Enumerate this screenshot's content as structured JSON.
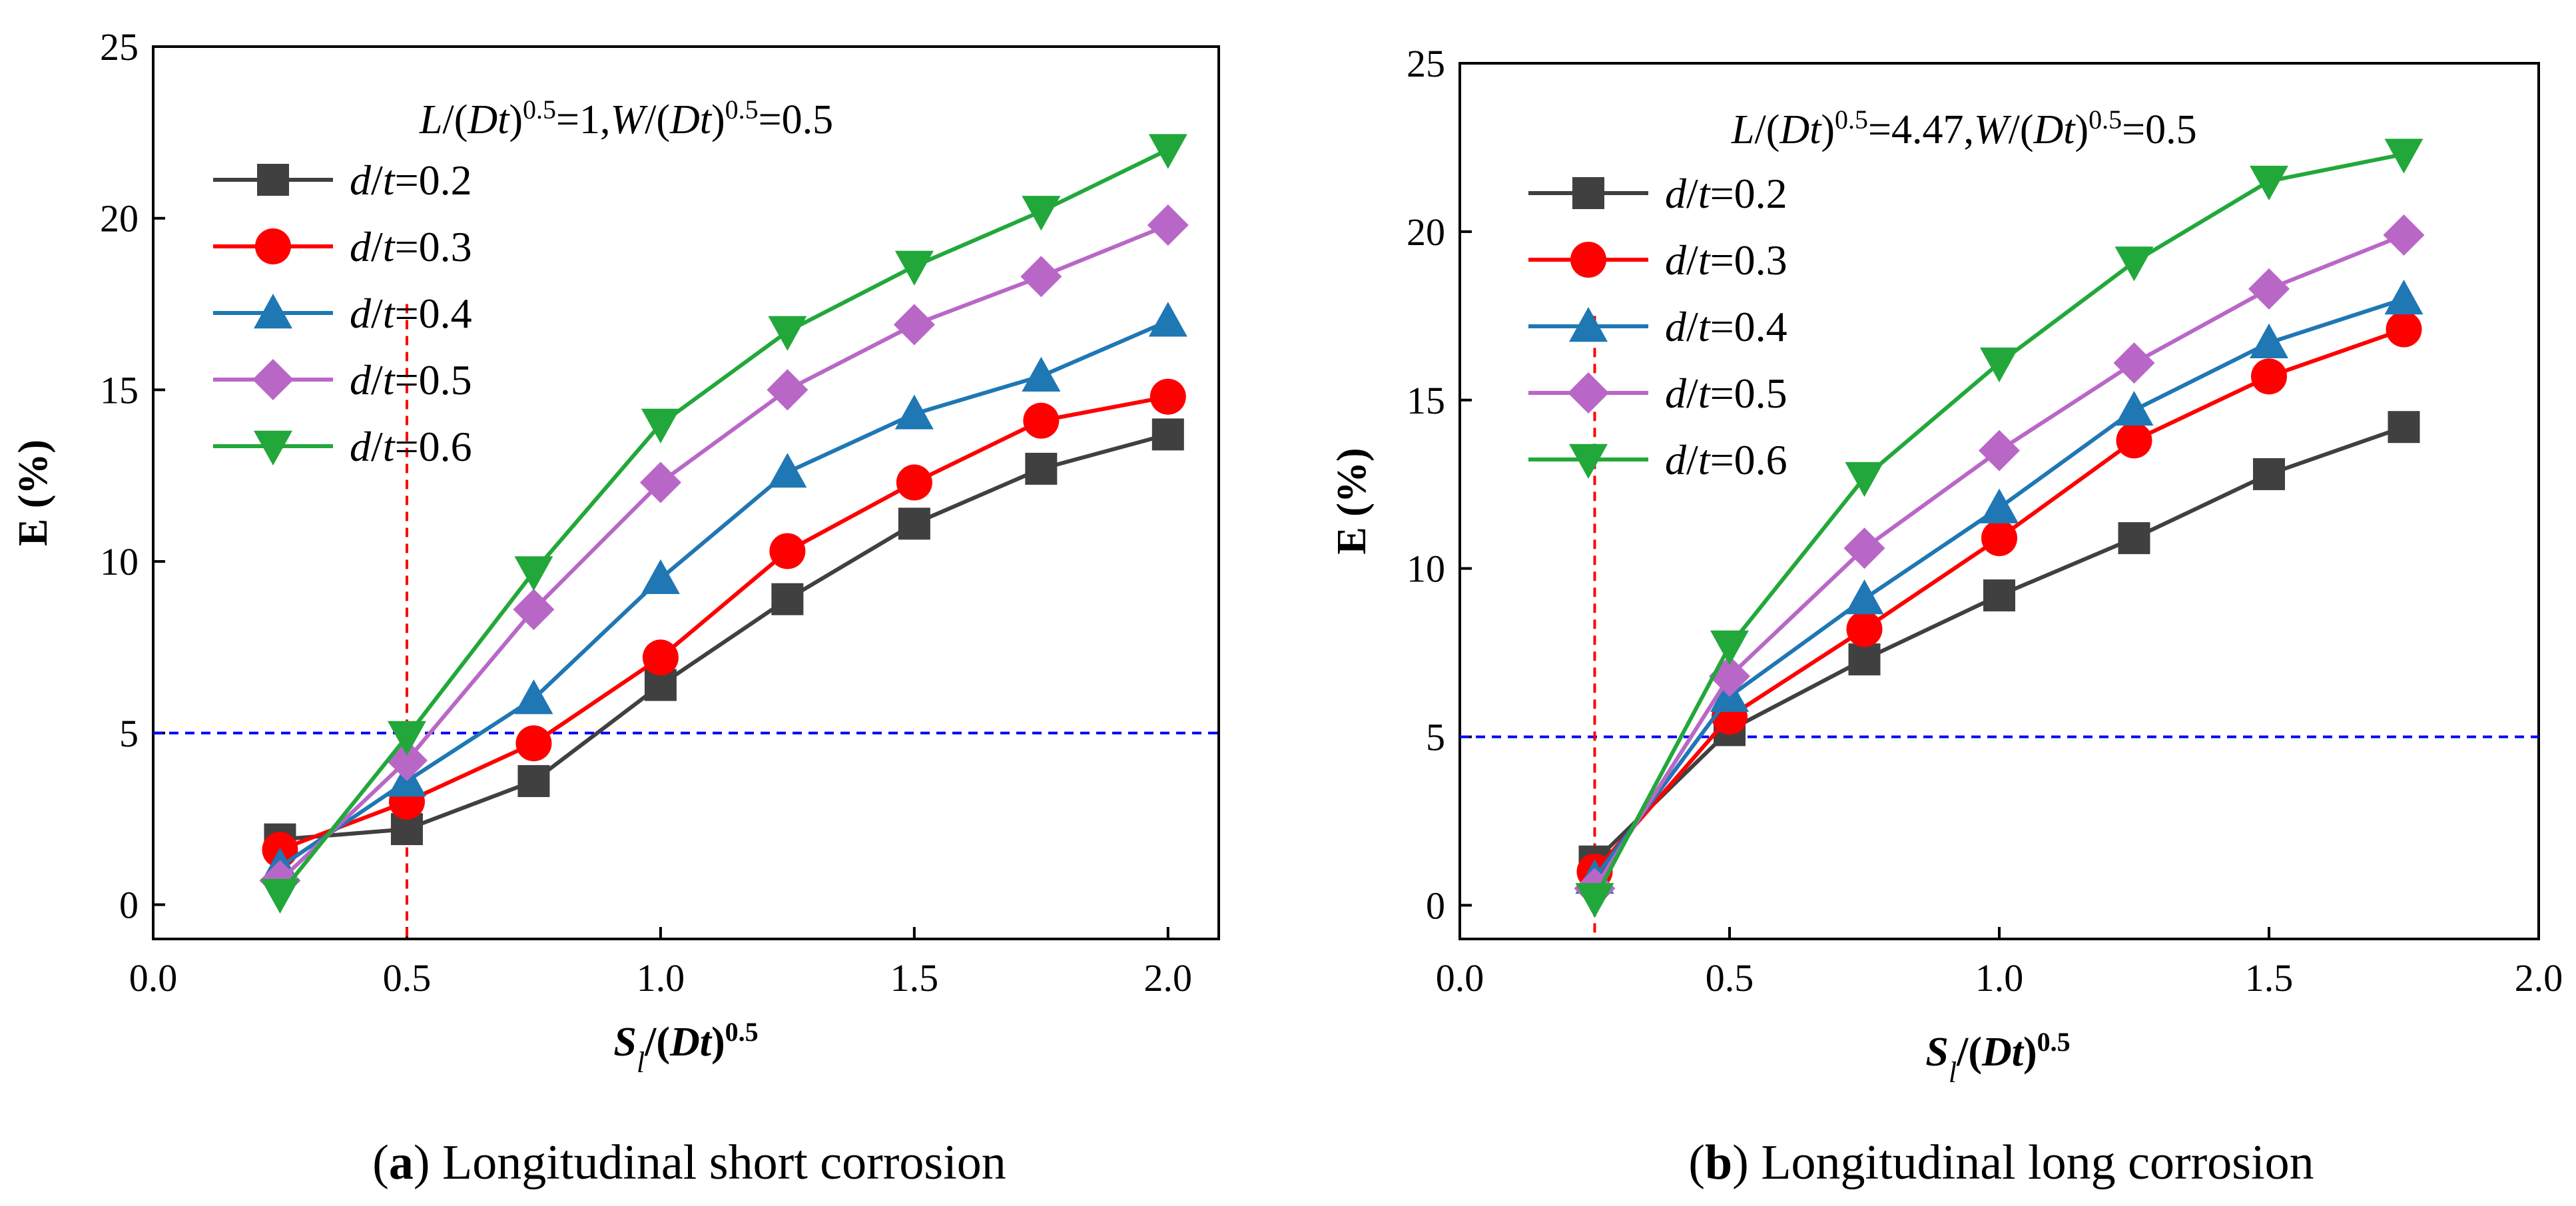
{
  "figure": {
    "colors": {
      "series": [
        "#404040",
        "#ff0000",
        "#1f77b4",
        "#b967c7",
        "#22a83a"
      ],
      "reference_line": "#0000ff",
      "threshold_line": "#ff0000",
      "axis": "#000000"
    }
  },
  "chart_data": [
    {
      "id": "a",
      "type": "line",
      "caption_letter": "a",
      "caption_paren_open": "(",
      "caption_paren_close": ")",
      "caption_text": "Longitudinal short corrosion",
      "param_text": "L/(Dt)0.5=1,W/(Dt)0.5=0.5",
      "param_parts": [
        {
          "text": "L",
          "italic": true
        },
        {
          "text": "/("
        },
        {
          "text": "Dt",
          "italic": true
        },
        {
          "text": ")"
        },
        {
          "text": "0.5",
          "sup": true
        },
        {
          "text": "=1,"
        },
        {
          "text": "W",
          "italic": true
        },
        {
          "text": "/("
        },
        {
          "text": "Dt",
          "italic": true
        },
        {
          "text": ")"
        },
        {
          "text": "0.5",
          "sup": true
        },
        {
          "text": "=0.5"
        }
      ],
      "xlabel": "Sl/(Dt)0.5",
      "ylabel": "E (%)",
      "xlim": [
        0.0,
        2.1
      ],
      "ylim": [
        -1,
        25
      ],
      "xticks": [
        "0.0",
        "0.5",
        "1.0",
        "1.5",
        "2.0"
      ],
      "yticks": [
        "0",
        "5",
        "10",
        "15",
        "20",
        "25"
      ],
      "x": [
        0.25,
        0.5,
        0.75,
        1.0,
        1.25,
        1.5,
        1.75,
        2.0
      ],
      "reference_line_y": 5,
      "threshold_line_x": 0.5,
      "legend_position": "upper-left",
      "series": [
        {
          "name": "d/t=0.2",
          "name_italic": "d",
          "name_sep": "/",
          "name_italic2": "t",
          "name_value": "=0.2",
          "marker": "square",
          "values": [
            1.9,
            2.2,
            3.6,
            6.4,
            8.9,
            11.1,
            12.7,
            13.7
          ]
        },
        {
          "name": "d/t=0.3",
          "name_italic": "d",
          "name_sep": "/",
          "name_italic2": "t",
          "name_value": "=0.3",
          "marker": "circle",
          "values": [
            1.6,
            3.0,
            4.7,
            7.2,
            10.3,
            12.3,
            14.1,
            14.8
          ]
        },
        {
          "name": "d/t=0.4",
          "name_italic": "d",
          "name_sep": "/",
          "name_italic2": "t",
          "name_value": "=0.4",
          "marker": "triangle-up",
          "values": [
            1.1,
            3.6,
            6.0,
            9.5,
            12.6,
            14.3,
            15.4,
            17.0
          ]
        },
        {
          "name": "d/t=0.5",
          "name_italic": "d",
          "name_sep": "/",
          "name_italic2": "t",
          "name_value": "=0.5",
          "marker": "diamond",
          "values": [
            0.7,
            4.2,
            8.6,
            12.3,
            15.0,
            16.9,
            18.3,
            19.8
          ]
        },
        {
          "name": "d/t=0.6",
          "name_italic": "d",
          "name_sep": "/",
          "name_italic2": "t",
          "name_value": "=0.6",
          "marker": "triangle-down",
          "values": [
            0.3,
            4.9,
            9.7,
            14.0,
            16.7,
            18.6,
            20.2,
            22.0
          ]
        }
      ]
    },
    {
      "id": "b",
      "type": "line",
      "caption_letter": "b",
      "caption_paren_open": "(",
      "caption_paren_close": ")",
      "caption_text": "Longitudinal long corrosion",
      "param_text": "L/(Dt)0.5=4.47,W/(Dt)0.5=0.5",
      "param_parts": [
        {
          "text": "L",
          "italic": true
        },
        {
          "text": "/("
        },
        {
          "text": "Dt",
          "italic": true
        },
        {
          "text": ")"
        },
        {
          "text": "0.5",
          "sup": true
        },
        {
          "text": "=4.47,"
        },
        {
          "text": "W",
          "italic": true
        },
        {
          "text": "/("
        },
        {
          "text": "Dt",
          "italic": true
        },
        {
          "text": ")"
        },
        {
          "text": "0.5",
          "sup": true
        },
        {
          "text": "=0.5"
        }
      ],
      "xlabel": "Sl/(Dt)0.5",
      "ylabel": "E (%)",
      "xlim": [
        0.0,
        2.0
      ],
      "ylim": [
        -1,
        25
      ],
      "xticks": [
        "0.0",
        "0.5",
        "1.0",
        "1.5",
        "2.0"
      ],
      "yticks": [
        "0",
        "5",
        "10",
        "15",
        "20",
        "25"
      ],
      "x": [
        0.25,
        0.5,
        0.75,
        1.0,
        1.25,
        1.5,
        1.75
      ],
      "reference_line_y": 5,
      "threshold_line_x": 0.25,
      "legend_position": "upper-left",
      "series": [
        {
          "name": "d/t=0.2",
          "name_italic": "d",
          "name_sep": "/",
          "name_italic2": "t",
          "name_value": "=0.2",
          "marker": "square",
          "values": [
            1.3,
            5.2,
            7.3,
            9.2,
            10.9,
            12.8,
            14.2
          ]
        },
        {
          "name": "d/t=0.3",
          "name_italic": "d",
          "name_sep": "/",
          "name_italic2": "t",
          "name_value": "=0.3",
          "marker": "circle",
          "values": [
            1.0,
            5.6,
            8.2,
            10.9,
            13.8,
            15.7,
            17.1
          ]
        },
        {
          "name": "d/t=0.4",
          "name_italic": "d",
          "name_sep": "/",
          "name_italic2": "t",
          "name_value": "=0.4",
          "marker": "triangle-up",
          "values": [
            0.8,
            6.2,
            9.1,
            11.8,
            14.7,
            16.7,
            18.0
          ]
        },
        {
          "name": "d/t=0.5",
          "name_italic": "d",
          "name_sep": "/",
          "name_italic2": "t",
          "name_value": "=0.5",
          "marker": "diamond",
          "values": [
            0.5,
            6.8,
            10.6,
            13.5,
            16.1,
            18.3,
            19.9
          ]
        },
        {
          "name": "d/t=0.6",
          "name_italic": "d",
          "name_sep": "/",
          "name_italic2": "t",
          "name_value": "=0.6",
          "marker": "triangle-down",
          "values": [
            0.2,
            7.7,
            12.7,
            16.1,
            19.1,
            21.5,
            22.3
          ]
        }
      ]
    }
  ]
}
